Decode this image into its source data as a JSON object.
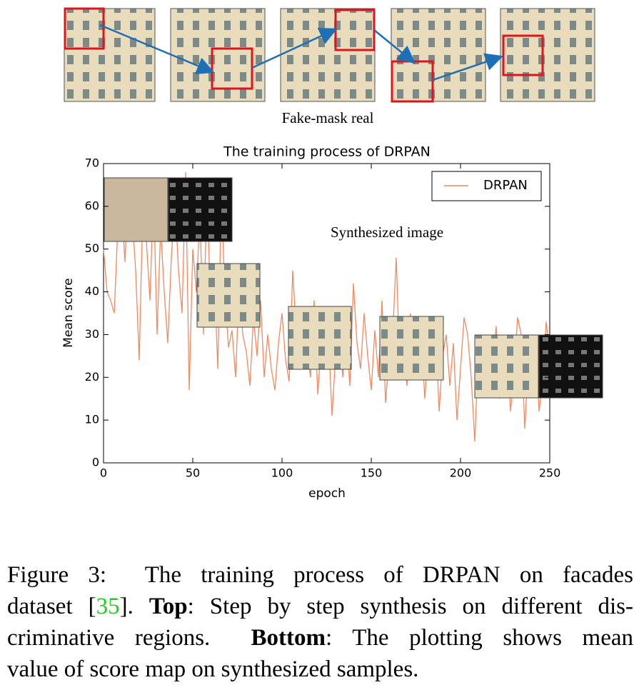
{
  "top_caption": "Fake-mask real",
  "chart_data": {
    "type": "line",
    "title": "The training process of DRPAN",
    "xlabel": "epoch",
    "ylabel": "Mean score",
    "annotation": "Synthesized image",
    "x": [
      0,
      2,
      4,
      6,
      8,
      10,
      12,
      14,
      16,
      18,
      20,
      22,
      24,
      26,
      28,
      30,
      32,
      34,
      36,
      38,
      40,
      42,
      44,
      46,
      48,
      50,
      52,
      54,
      56,
      58,
      60,
      62,
      64,
      66,
      68,
      70,
      72,
      74,
      76,
      78,
      80,
      82,
      84,
      86,
      88,
      90,
      92,
      94,
      96,
      98,
      100,
      102,
      104,
      106,
      108,
      110,
      112,
      114,
      116,
      118,
      120,
      122,
      124,
      126,
      128,
      130,
      132,
      134,
      136,
      138,
      140,
      142,
      144,
      146,
      148,
      150,
      152,
      154,
      156,
      158,
      160,
      162,
      164,
      166,
      168,
      170,
      172,
      174,
      176,
      178,
      180,
      182,
      184,
      186,
      188,
      190,
      192,
      194,
      196,
      198,
      200,
      202,
      204,
      206,
      208,
      210,
      212,
      214,
      216,
      218,
      220,
      222,
      224,
      226,
      228,
      230,
      232,
      234,
      236,
      238,
      240,
      242,
      244,
      246,
      248,
      250
    ],
    "series": [
      {
        "name": "DRPAN",
        "color": "#f4895f",
        "values": [
          50,
          40,
          38,
          35,
          55,
          62,
          47,
          66,
          58,
          45,
          24,
          60,
          52,
          38,
          64,
          30,
          55,
          40,
          28,
          48,
          62,
          45,
          35,
          68,
          17,
          50,
          40,
          58,
          30,
          66,
          35,
          45,
          22,
          62,
          40,
          27,
          31,
          20,
          42,
          30,
          26,
          18,
          34,
          25,
          38,
          20,
          30,
          22,
          17,
          28,
          35,
          24,
          19,
          45,
          30,
          22,
          32,
          26,
          20,
          38,
          16,
          28,
          22,
          30,
          11,
          25,
          35,
          20,
          30,
          18,
          42,
          28,
          22,
          35,
          25,
          17,
          31,
          20,
          38,
          14,
          25,
          30,
          48,
          22,
          28,
          18,
          35,
          20,
          26,
          30,
          15,
          28,
          22,
          32,
          12,
          25,
          30,
          18,
          28,
          10,
          22,
          34,
          30,
          20,
          5,
          26,
          22,
          30,
          18,
          24,
          32,
          15,
          25,
          28,
          12,
          22,
          34,
          30,
          8,
          24,
          18,
          30,
          12,
          20,
          33,
          25
        ]
      }
    ],
    "xlim": [
      0,
      250
    ],
    "ylim": [
      0,
      70
    ],
    "xticks": [
      0,
      50,
      100,
      150,
      200,
      250
    ],
    "yticks": [
      0,
      10,
      20,
      30,
      40,
      50,
      60,
      70
    ],
    "grid": false,
    "legend": "upper right"
  },
  "caption": {
    "lines": [
      [
        {
          "text": "Figure 3:  The training process of DRPAN on facades"
        }
      ],
      [
        {
          "text": "dataset ["
        },
        {
          "text": "35",
          "cite": true
        },
        {
          "text": "]. "
        },
        {
          "text": "Top",
          "bold": true
        },
        {
          "text": ": Step by step synthesis on different dis-"
        }
      ],
      [
        {
          "text": "criminative regions.  "
        },
        {
          "text": "Bottom",
          "bold": true
        },
        {
          "text": ": The plotting shows mean"
        }
      ],
      [
        {
          "text": "value of score map on synthesized samples."
        }
      ]
    ]
  }
}
